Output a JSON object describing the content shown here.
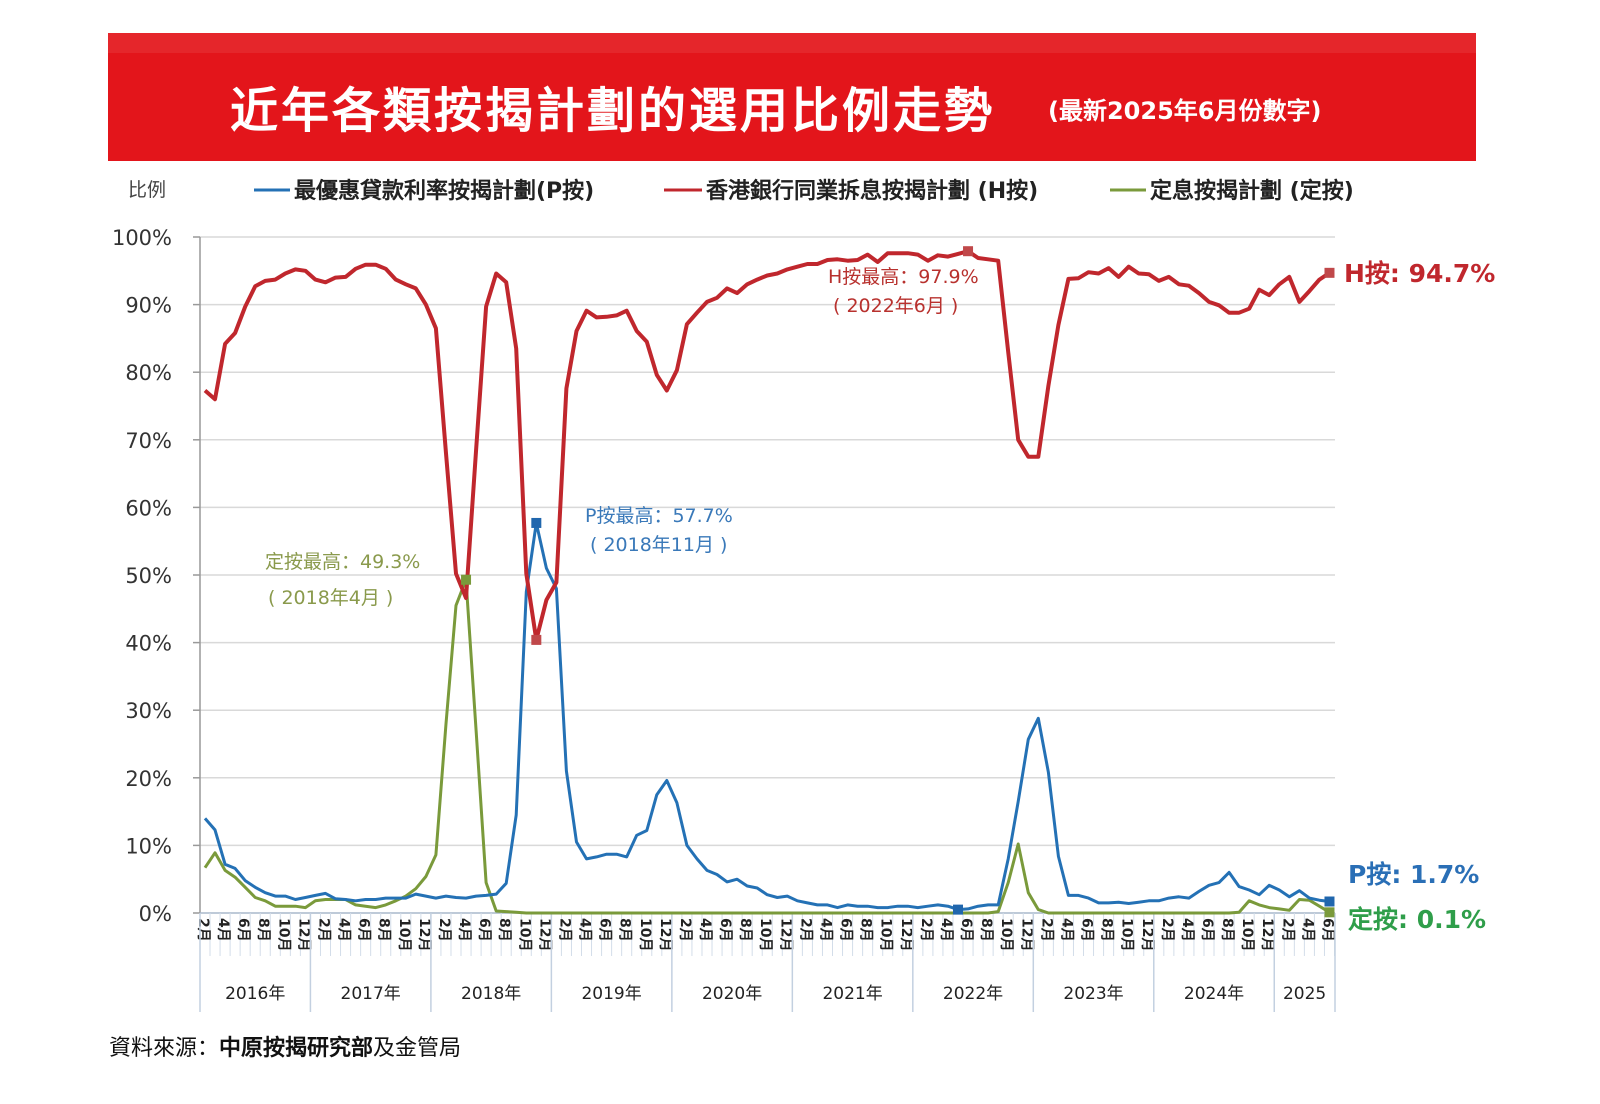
{
  "title": {
    "main": "近年各類按揭計劃的選用比例走勢",
    "sub": "(最新2025年6月份數字)"
  },
  "source": {
    "label": "資料來源：",
    "bold": "中原按揭研究部",
    "rest": "及金管局"
  },
  "chart_data": {
    "type": "line",
    "ylabel": "比例",
    "ylim": [
      0,
      100
    ],
    "y_ticks": [
      "0%",
      "10%",
      "20%",
      "30%",
      "40%",
      "50%",
      "60%",
      "70%",
      "80%",
      "90%",
      "100%"
    ],
    "grid": true,
    "legend": "top",
    "x_start": "2016-02",
    "x_end": "2025-06",
    "x_frequency": "monthly",
    "month_tick_labels": [
      "2月",
      "4月",
      "6月",
      "8月",
      "10月",
      "12月"
    ],
    "year_labels": [
      "2016年",
      "2017年",
      "2018年",
      "2019年",
      "2020年",
      "2021年",
      "2022年",
      "2023年",
      "2024年",
      "2025"
    ],
    "series": [
      {
        "key": "P",
        "name": "最優惠貸款利率按揭計劃(P按)",
        "color": "#2471b5",
        "values": [
          14,
          12.3,
          7.2,
          6.6,
          4.8,
          3.8,
          3.0,
          2.5,
          2.5,
          2.0,
          2.3,
          2.6,
          2.9,
          2.1,
          2.0,
          1.8,
          2.0,
          2.0,
          2.2,
          2.2,
          2.2,
          2.8,
          2.5,
          2.2,
          2.5,
          2.3,
          2.2,
          2.5,
          2.6,
          2.8,
          4.4,
          14.5,
          47.5,
          57.7,
          51,
          48,
          21,
          10.5,
          8,
          8.3,
          8.7,
          8.7,
          8.3,
          11.5,
          12.2,
          17.5,
          19.6,
          16.3,
          10,
          8,
          6.3,
          5.7,
          4.6,
          5.0,
          4,
          3.7,
          2.7,
          2.3,
          2.5,
          1.8,
          1.5,
          1.2,
          1.2,
          0.8,
          1.2,
          1.0,
          1.0,
          0.8,
          0.8,
          1.0,
          1.0,
          0.8,
          1.0,
          1.2,
          1.0,
          0.5,
          0.6,
          1.0,
          1.2,
          1.2,
          8,
          16.5,
          25.7,
          28.8,
          20.8,
          8.4,
          2.6,
          2.6,
          2.2,
          1.5,
          1.5,
          1.6,
          1.4,
          1.6,
          1.8,
          1.8,
          2.2,
          2.4,
          2.2,
          3.2,
          4.1,
          4.5,
          6.0,
          3.9,
          3.4,
          2.7,
          4.1,
          3.4,
          2.4,
          3.3,
          2.2,
          1.9,
          1.7
        ]
      },
      {
        "key": "H",
        "name": "香港銀行同業拆息按揭計劃 (H按)",
        "color": "#c0272d",
        "values": [
          77.3,
          76,
          84.2,
          85.8,
          89.7,
          92.7,
          93.5,
          93.7,
          94.6,
          95.2,
          95,
          93.7,
          93.3,
          94,
          94.1,
          95.3,
          95.9,
          95.9,
          95.3,
          93.7,
          93,
          92.4,
          90,
          86.5,
          68,
          50.2,
          46.6,
          68.5,
          89.7,
          94.6,
          93.3,
          83.5,
          50.2,
          40.4,
          46.3,
          48.9,
          77.6,
          86.1,
          89.1,
          88.1,
          88.2,
          88.4,
          89.1,
          86.1,
          84.5,
          79.6,
          77.3,
          80.3,
          87.1,
          88.8,
          90.4,
          91,
          92.4,
          91.7,
          93,
          93.7,
          94.3,
          94.6,
          95.2,
          95.6,
          96,
          96,
          96.6,
          96.7,
          96.5,
          96.6,
          97.4,
          96.3,
          97.6,
          97.6,
          97.6,
          97.4,
          96.5,
          97.3,
          97.1,
          97.5,
          97.9,
          96.9,
          96.7,
          96.5,
          83,
          70,
          67.5,
          67.5,
          78,
          87,
          93.8,
          93.9,
          94.8,
          94.6,
          95.4,
          94.1,
          95.6,
          94.6,
          94.5,
          93.5,
          94.1,
          93,
          92.8,
          91.7,
          90.4,
          89.9,
          88.8,
          88.8,
          89.4,
          92.2,
          91.4,
          93,
          94.1,
          90.4,
          92,
          93.7,
          94.7
        ]
      },
      {
        "key": "F",
        "name": "定息按揭計劃 (定按)",
        "color": "#7a9a3b",
        "values": [
          6.7,
          8.9,
          6.3,
          5.3,
          3.8,
          2.3,
          1.8,
          1.0,
          1.0,
          1.0,
          0.8,
          1.8,
          2.0,
          2.0,
          2.0,
          1.2,
          1.0,
          0.8,
          1.2,
          1.8,
          2.5,
          3.6,
          5.4,
          8.6,
          28,
          45.5,
          49.3,
          27,
          4.5,
          0.3,
          0.2,
          0.1,
          0,
          0,
          0,
          0,
          0,
          0,
          0,
          0,
          0,
          0,
          0,
          0,
          0,
          0,
          0,
          0,
          0,
          0,
          0,
          0,
          0,
          0,
          0,
          0,
          0,
          0,
          0,
          0,
          0,
          0,
          0,
          0,
          0,
          0,
          0,
          0,
          0,
          0,
          0,
          0,
          0,
          0,
          0,
          0,
          0,
          0,
          0,
          0.2,
          4.5,
          10.2,
          3.0,
          0.5,
          0,
          0,
          0,
          0,
          0,
          0,
          0,
          0,
          0,
          0,
          0,
          0,
          0,
          0,
          0,
          0,
          0,
          0,
          0,
          0.1,
          1.8,
          1.2,
          0.8,
          0.6,
          0.4,
          2.0,
          1.9,
          1.0,
          0.1
        ]
      }
    ],
    "markers": [
      {
        "series": "F",
        "month": "2018-04",
        "value": 49.3
      },
      {
        "series": "P",
        "month": "2018-11",
        "value": 57.7
      },
      {
        "series": "H",
        "month": "2018-11",
        "value": 40.4
      },
      {
        "series": "H",
        "month": "2022-06",
        "value": 97.9
      },
      {
        "series": "P",
        "month": "2022-05",
        "value": 0.5
      },
      {
        "series": "H",
        "month": "2025-06",
        "value": 94.7
      },
      {
        "series": "P",
        "month": "2025-06",
        "value": 1.7
      },
      {
        "series": "F",
        "month": "2025-06",
        "value": 0.1
      }
    ],
    "annotations": {
      "fixed_max": {
        "line1": "定按最高：49.3%",
        "line2": "( 2018年4月 )",
        "color": "#8a9a4c"
      },
      "p_max": {
        "line1": "P按最高：57.7%",
        "line2": "( 2018年11月 )",
        "color": "#3a79b9"
      },
      "h_max": {
        "line1": "H按最高：97.9%",
        "line2": "( 2022年6月 )",
        "color": "#b8312e"
      }
    },
    "end_labels": {
      "H": {
        "text": "H按: 94.7%",
        "color": "#c0272d"
      },
      "P": {
        "text": "P按: 1.7%",
        "color": "#2a6fb6"
      },
      "F": {
        "text": "定按: 0.1%",
        "color": "#2f9e4a"
      }
    }
  }
}
